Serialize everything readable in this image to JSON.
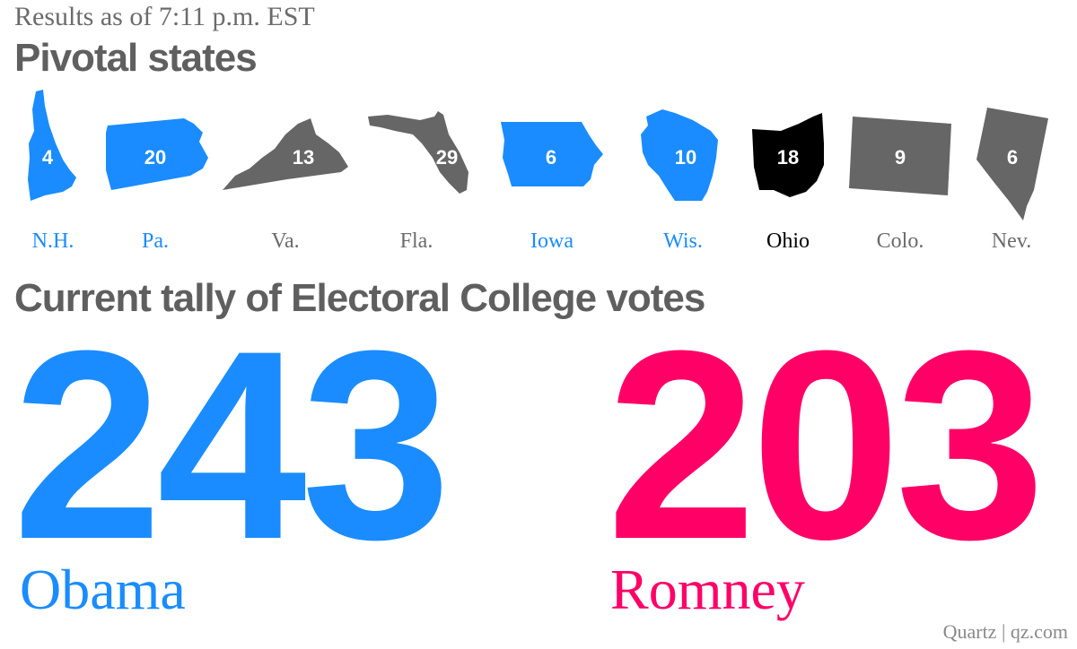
{
  "header": {
    "timestamp": "Results as of 7:11 p.m. EST",
    "pivotal_title": "Pivotal states",
    "tally_title": "Current tally of Electoral College votes"
  },
  "colors": {
    "obama": "#1a8cff",
    "romney": "#ff0066",
    "undecided": "#666666",
    "ohio": "#000000"
  },
  "states": [
    {
      "abbr": "N.H.",
      "votes": "4",
      "status": "obama",
      "icon": "new-hampshire-shape-icon"
    },
    {
      "abbr": "Pa.",
      "votes": "20",
      "status": "obama",
      "icon": "pennsylvania-shape-icon"
    },
    {
      "abbr": "Va.",
      "votes": "13",
      "status": "undecided",
      "icon": "virginia-shape-icon"
    },
    {
      "abbr": "Fla.",
      "votes": "29",
      "status": "undecided",
      "icon": "florida-shape-icon"
    },
    {
      "abbr": "Iowa",
      "votes": "6",
      "status": "obama",
      "icon": "iowa-shape-icon"
    },
    {
      "abbr": "Wis.",
      "votes": "10",
      "status": "obama",
      "icon": "wisconsin-shape-icon"
    },
    {
      "abbr": "Ohio",
      "votes": "18",
      "status": "ohio",
      "icon": "ohio-shape-icon"
    },
    {
      "abbr": "Colo.",
      "votes": "9",
      "status": "undecided",
      "icon": "colorado-shape-icon"
    },
    {
      "abbr": "Nev.",
      "votes": "6",
      "status": "undecided",
      "icon": "nevada-shape-icon"
    }
  ],
  "tally": {
    "obama": {
      "votes": "243",
      "name": "Obama"
    },
    "romney": {
      "votes": "203",
      "name": "Romney"
    }
  },
  "credit": "Quartz | qz.com"
}
